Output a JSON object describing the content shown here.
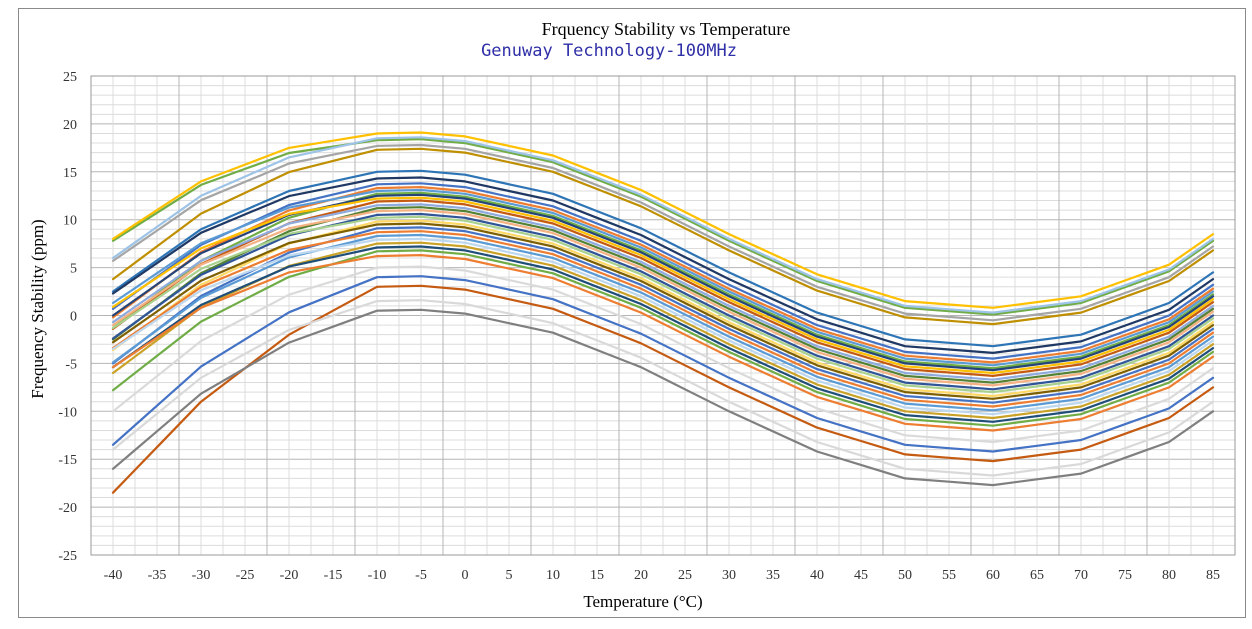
{
  "chart_data": {
    "type": "line",
    "title": "Frquency Stability vs Temperature",
    "subtitle": "Genuway Technology-100MHz",
    "xlabel": "Temperature (°C)",
    "ylabel": "Frequency Stability (ppm)",
    "x": [
      -40,
      -35,
      -30,
      -25,
      -20,
      -15,
      -10,
      -5,
      0,
      5,
      10,
      15,
      20,
      25,
      30,
      35,
      40,
      45,
      50,
      55,
      60,
      65,
      70,
      75,
      80,
      85
    ],
    "x_tick_labels": [
      "-40",
      "-35",
      "-30",
      "-25",
      "-20",
      "-15",
      "-10",
      "-5",
      "0",
      "5",
      "10",
      "15",
      "20",
      "25",
      "30",
      "35",
      "40",
      "45",
      "50",
      "55",
      "60",
      "65",
      "70",
      "75",
      "80",
      "85"
    ],
    "y_tick_labels": [
      "25",
      "20",
      "15",
      "10",
      "5",
      "0",
      "-5",
      "-10",
      "-15",
      "-20",
      "-25"
    ],
    "ylim": [
      -25,
      25
    ],
    "yticks": [
      -25,
      -20,
      -15,
      -10,
      -5,
      0,
      5,
      10,
      15,
      20,
      25
    ],
    "grid": true,
    "legend": "none",
    "series_shape": {
      "anchor_x": [
        -40,
        -30,
        -20,
        -10,
        -5,
        0,
        10,
        20,
        30,
        40,
        50,
        60,
        70,
        80,
        85
      ],
      "anchor_y": [
        0,
        6.5,
        10.5,
        12.5,
        12.6,
        12.2,
        10.2,
        6.6,
        2.0,
        -2.2,
        -5.0,
        -5.7,
        -4.5,
        -1.2,
        2.0
      ]
    },
    "series": [
      {
        "color": "#70ad47",
        "offset": 5.8,
        "start_shift": 2.0
      },
      {
        "color": "#ffc000",
        "offset": 6.5,
        "start_shift": 1.5
      },
      {
        "color": "#a5a5a5",
        "offset": 5.2,
        "start_shift": 0.5
      },
      {
        "color": "#9dc3e6",
        "offset": 6.0,
        "start_shift": 0.0
      },
      {
        "color": "#bf8f00",
        "offset": 4.8,
        "start_shift": -1.0
      },
      {
        "color": "#2e75b6",
        "offset": 2.5,
        "start_shift": 0.0
      },
      {
        "color": "#1f3864",
        "offset": 1.8,
        "start_shift": 0.5
      },
      {
        "color": "#4472c4",
        "offset": 1.2,
        "start_shift": -0.5
      },
      {
        "color": "#ed7d31",
        "offset": 0.8,
        "start_shift": -1.0
      },
      {
        "color": "#5b9bd5",
        "offset": 0.5,
        "start_shift": 0.8
      },
      {
        "color": "#70ad47",
        "offset": 0.2,
        "start_shift": -1.5
      },
      {
        "color": "#264478",
        "offset": 0.0,
        "start_shift": 0.0
      },
      {
        "color": "#ffc000",
        "offset": -0.3,
        "start_shift": 1.2
      },
      {
        "color": "#c55a11",
        "offset": -0.6,
        "start_shift": -0.8
      },
      {
        "color": "#8faadc",
        "offset": -1.0,
        "start_shift": 0.3
      },
      {
        "color": "#548235",
        "offset": -1.3,
        "start_shift": -1.2
      },
      {
        "color": "#f4b183",
        "offset": -1.6,
        "start_shift": 0.6
      },
      {
        "color": "#2f5597",
        "offset": -2.0,
        "start_shift": -0.4
      },
      {
        "color": "#a9d18e",
        "offset": -2.3,
        "start_shift": 1.0
      },
      {
        "color": "#ffd966",
        "offset": -2.7,
        "start_shift": -0.9
      },
      {
        "color": "#7f6000",
        "offset": -3.0,
        "start_shift": 0.2
      },
      {
        "color": "#4472c4",
        "offset": -3.4,
        "start_shift": -1.6
      },
      {
        "color": "#ed7d31",
        "offset": -3.8,
        "start_shift": 0.4
      },
      {
        "color": "#5b9bd5",
        "offset": -4.2,
        "start_shift": -0.7
      },
      {
        "color": "#bdd7ee",
        "offset": -4.6,
        "start_shift": 1.1
      },
      {
        "color": "#c9a227",
        "offset": -5.0,
        "start_shift": -1.0
      },
      {
        "color": "#1f4e79",
        "offset": -5.4,
        "start_shift": 0.0
      },
      {
        "color": "#70ad47",
        "offset": -5.8,
        "start_shift": -2.0
      },
      {
        "color": "#ed7d31",
        "offset": -6.3,
        "start_shift": 0.9
      },
      {
        "color": "#dadada",
        "offset": -7.5,
        "start_shift": -2.5
      },
      {
        "color": "#4472c4",
        "offset": -8.5,
        "start_shift": -5.0
      },
      {
        "color": "#c55a11",
        "offset": -9.5,
        "start_shift": -9.0
      },
      {
        "color": "#7f7f7f",
        "offset": -12.0,
        "start_shift": -4.0
      },
      {
        "color": "#d9d9d9",
        "offset": -11.0,
        "start_shift": -3.0
      }
    ]
  }
}
